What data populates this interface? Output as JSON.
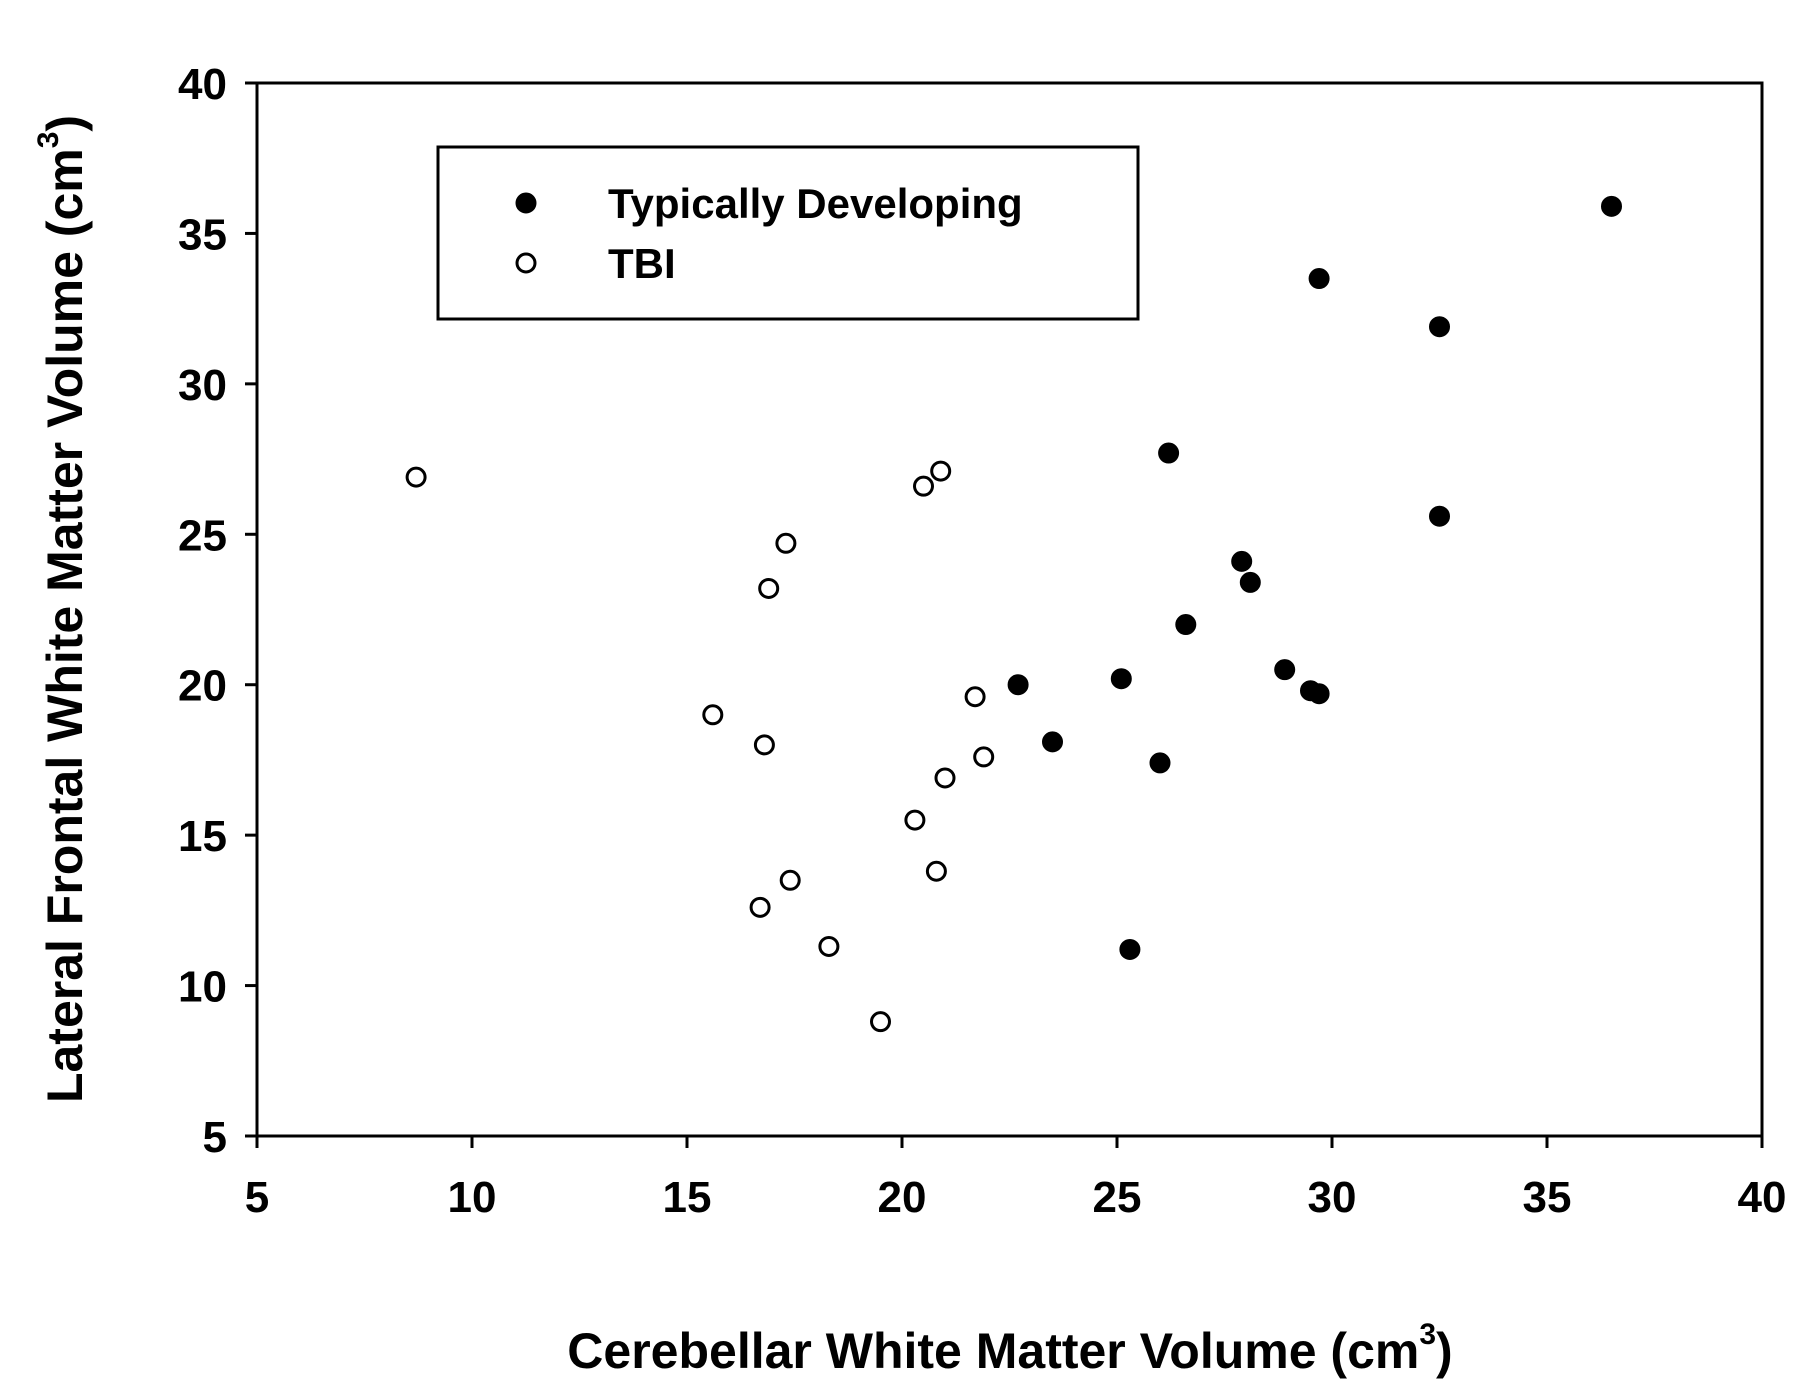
{
  "chart_data": {
    "type": "scatter",
    "xlabel": "Cerebellar White Matter Volume (cm",
    "xlabel_sup": "3",
    "xlabel_close": ")",
    "ylabel": "Lateral Frontal White Matter Volume (cm",
    "ylabel_sup": "3",
    "ylabel_close": ")",
    "xlim": [
      5,
      40
    ],
    "ylim": [
      5,
      40
    ],
    "xticks": [
      "5",
      "10",
      "15",
      "20",
      "25",
      "30",
      "35",
      "40"
    ],
    "yticks": [
      "5",
      "10",
      "15",
      "20",
      "25",
      "30",
      "35",
      "40"
    ],
    "grid": false,
    "legend_position": "top-left",
    "series": [
      {
        "name": "Typically Developing",
        "marker": "filled-circle",
        "color": "#000000",
        "points": [
          [
            36.5,
            35.9
          ],
          [
            29.7,
            33.5
          ],
          [
            32.5,
            31.9
          ],
          [
            26.2,
            27.7
          ],
          [
            32.5,
            25.6
          ],
          [
            27.9,
            24.1
          ],
          [
            28.1,
            23.4
          ],
          [
            26.6,
            22.0
          ],
          [
            22.7,
            20.0
          ],
          [
            25.1,
            20.2
          ],
          [
            28.9,
            20.5
          ],
          [
            29.5,
            19.8
          ],
          [
            29.7,
            19.7
          ],
          [
            23.5,
            18.1
          ],
          [
            26.0,
            17.4
          ],
          [
            25.3,
            11.2
          ]
        ]
      },
      {
        "name": "TBI",
        "marker": "open-circle",
        "color": "#000000",
        "points": [
          [
            8.7,
            26.9
          ],
          [
            20.9,
            27.1
          ],
          [
            20.5,
            26.6
          ],
          [
            17.3,
            24.7
          ],
          [
            16.9,
            23.2
          ],
          [
            15.6,
            19.0
          ],
          [
            16.8,
            18.0
          ],
          [
            21.7,
            19.6
          ],
          [
            21.9,
            17.6
          ],
          [
            21.0,
            16.9
          ],
          [
            20.3,
            15.5
          ],
          [
            20.8,
            13.8
          ],
          [
            17.4,
            13.5
          ],
          [
            16.7,
            12.6
          ],
          [
            18.3,
            11.3
          ],
          [
            19.5,
            8.8
          ]
        ]
      }
    ]
  }
}
